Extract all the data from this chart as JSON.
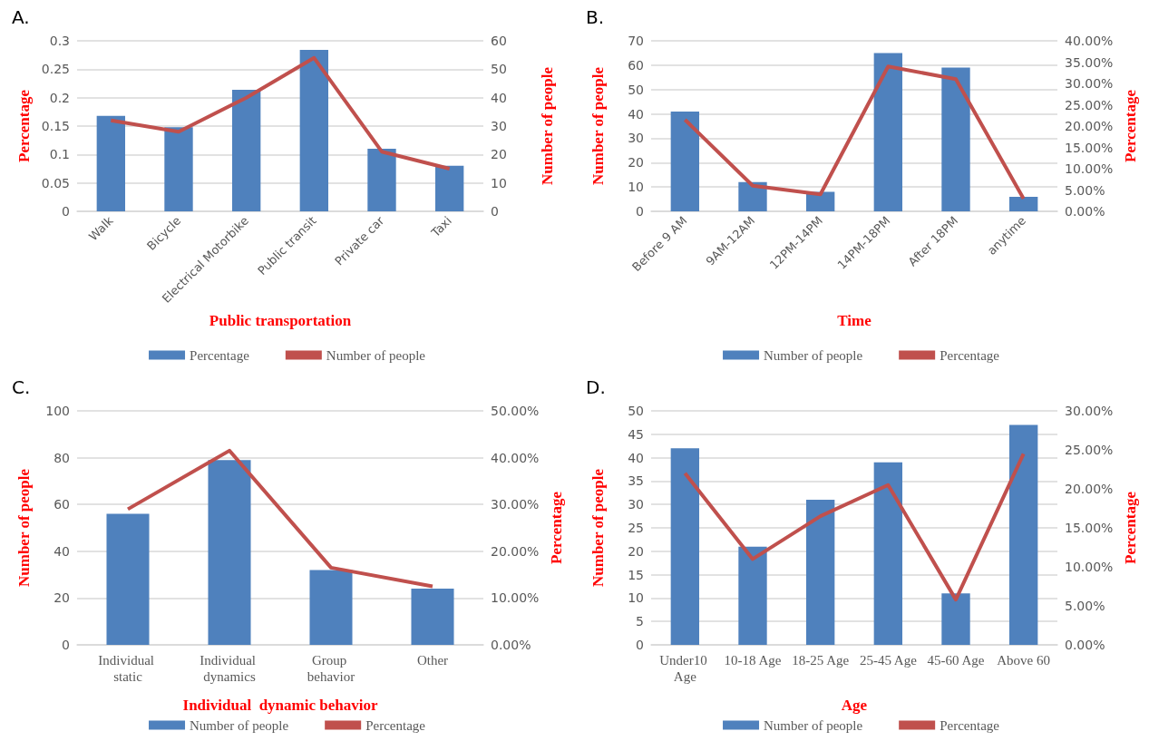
{
  "chart_data": [
    {
      "type": "bar",
      "title": "A.",
      "xlabel": "Public transportation",
      "ylabel": "Percentage",
      "y2label": "Number of people",
      "categories": [
        "Walk",
        "Bicycle",
        "Electrical Motorbike",
        "Public transit",
        "Private car",
        "Taxi"
      ],
      "series": [
        {
          "name": "Percentage",
          "color": "#4f81bd",
          "values": [
            0.168,
            0.148,
            0.214,
            0.284,
            0.11,
            0.08
          ]
        },
        {
          "name": "Number of people",
          "type": "line",
          "axis": "y2",
          "color": "#c0504d",
          "values": [
            32,
            28,
            40,
            54,
            21,
            15
          ]
        }
      ],
      "ylim": [
        0,
        0.3
      ],
      "yticks": [
        0,
        0.05,
        0.1,
        0.15,
        0.2,
        0.25,
        0.3
      ],
      "y2lim": [
        0,
        60
      ],
      "y2ticks": [
        0,
        10,
        20,
        30,
        40,
        50,
        60
      ],
      "grid": "y",
      "legend": "bottom",
      "marker": "none"
    },
    {
      "type": "bar",
      "title": "B.",
      "xlabel": "Time",
      "ylabel": "Number of people",
      "y2label": "Percentage",
      "categories": [
        "Before 9 AM",
        "9AM-12AM",
        "12PM-14PM",
        "14PM-18PM",
        "After 18PM",
        "anytime"
      ],
      "series": [
        {
          "name": "Number of people",
          "color": "#4f81bd",
          "values": [
            41,
            12,
            8,
            65,
            59,
            6
          ]
        },
        {
          "name": "Percentage",
          "type": "line",
          "axis": "y2",
          "color": "#c0504d",
          "values": [
            21.5,
            6,
            4,
            34,
            31,
            3
          ]
        }
      ],
      "ylim": [
        0,
        70
      ],
      "yticks": [
        0,
        10,
        20,
        30,
        40,
        50,
        60,
        70
      ],
      "y2lim": [
        0,
        40
      ],
      "y2ticks": [
        {
          "value": 0,
          "label": "0.00%"
        },
        {
          "value": 5,
          "label": "5.00%"
        },
        {
          "value": 10,
          "label": "10.00%"
        },
        {
          "value": 15,
          "label": "15.00%"
        },
        {
          "value": 20,
          "label": "20.00%"
        },
        {
          "value": 25,
          "label": "25.00%"
        },
        {
          "value": 30,
          "label": "30.00%"
        },
        {
          "value": 35,
          "label": "35.00%"
        },
        {
          "value": 40,
          "label": "40.00%"
        }
      ],
      "grid": "y",
      "legend": "bottom",
      "marker": "none"
    },
    {
      "type": "bar",
      "title": "C.",
      "xlabel": "Individual  dynamic behavior",
      "ylabel": "Number of people",
      "y2label": "Percentage",
      "categories": [
        "Individual static",
        "Individual dynamics",
        "Group behavior",
        "Other"
      ],
      "series": [
        {
          "name": "Number of people",
          "color": "#4f81bd",
          "values": [
            56,
            79,
            32,
            24
          ]
        },
        {
          "name": "Percentage",
          "type": "line",
          "axis": "y2",
          "color": "#c0504d",
          "values": [
            29,
            41.5,
            16.5,
            12.5
          ]
        }
      ],
      "ylim": [
        0,
        100
      ],
      "yticks": [
        0,
        20,
        40,
        60,
        80,
        100
      ],
      "y2lim": [
        0,
        50
      ],
      "y2ticks": [
        {
          "value": 0,
          "label": "0.00%"
        },
        {
          "value": 10,
          "label": "10.00%"
        },
        {
          "value": 20,
          "label": "20.00%"
        },
        {
          "value": 30,
          "label": "30.00%"
        },
        {
          "value": 40,
          "label": "40.00%"
        },
        {
          "value": 50,
          "label": "50.00%"
        }
      ],
      "grid": "y",
      "legend": "bottom",
      "marker": "none"
    },
    {
      "type": "bar",
      "title": "D.",
      "xlabel": "Age",
      "ylabel": "Number of people",
      "y2label": "Percentage",
      "categories": [
        "Under10 Age",
        "10-18 Age",
        "18-25 Age",
        "25-45 Age",
        "45-60 Age",
        "Above 60"
      ],
      "series": [
        {
          "name": "Number of people",
          "color": "#4f81bd",
          "values": [
            42,
            21,
            31,
            39,
            11,
            47
          ]
        },
        {
          "name": "Percentage",
          "type": "line",
          "axis": "y2",
          "color": "#c0504d",
          "values": [
            22,
            11,
            16.5,
            20.5,
            5.8,
            24.5
          ]
        }
      ],
      "ylim": [
        0,
        50
      ],
      "yticks": [
        0,
        5,
        10,
        15,
        20,
        25,
        30,
        35,
        40,
        45,
        50
      ],
      "y2lim": [
        0,
        30
      ],
      "y2ticks": [
        {
          "value": 0,
          "label": "0.00%"
        },
        {
          "value": 5,
          "label": "5.00%"
        },
        {
          "value": 10,
          "label": "10.00%"
        },
        {
          "value": 15,
          "label": "15.00%"
        },
        {
          "value": 20,
          "label": "20.00%"
        },
        {
          "value": 25,
          "label": "25.00%"
        },
        {
          "value": 30,
          "label": "30.00%"
        }
      ],
      "grid": "y",
      "legend": "bottom",
      "marker": "none"
    }
  ]
}
